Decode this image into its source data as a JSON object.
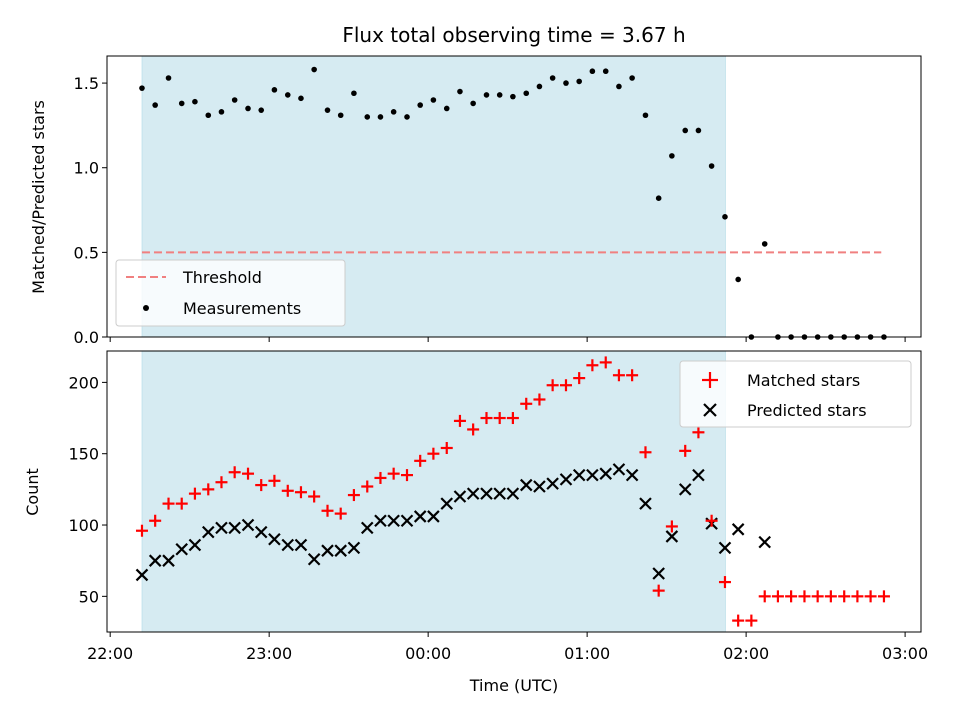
{
  "title": "Flux total observing time = 3.67 h",
  "xlabel": "Time (UTC)",
  "x_ticks": [
    "22:00",
    "23:00",
    "00:00",
    "01:00",
    "02:00",
    "03:00"
  ],
  "colors": {
    "shade": "#add8e6",
    "threshold": "#f08080",
    "matched": "#ff0000",
    "predicted": "#000000"
  },
  "chart_data": [
    {
      "type": "scatter",
      "ylabel": "Matched/Predicted stars",
      "x_unit": "hours since 22:00 UTC",
      "xlim": [
        -0.02,
        5.1
      ],
      "ylim": [
        0,
        1.66
      ],
      "y_ticks": [
        "0.0",
        "0.5",
        "1.0",
        "1.5"
      ],
      "y_tick_values": [
        0,
        0.5,
        1.0,
        1.5
      ],
      "shaded_interval": [
        0.2,
        3.87
      ],
      "legend": {
        "placement": "lower-left",
        "entries": [
          "Threshold",
          "Measurements"
        ]
      },
      "threshold": {
        "name": "Threshold",
        "y": 0.5,
        "x_range": [
          0.2,
          4.85
        ]
      },
      "series": [
        {
          "name": "Measurements",
          "x": [
            0.2,
            0.283,
            0.367,
            0.45,
            0.533,
            0.617,
            0.7,
            0.783,
            0.867,
            0.95,
            1.033,
            1.117,
            1.2,
            1.283,
            1.367,
            1.45,
            1.533,
            1.617,
            1.7,
            1.783,
            1.867,
            1.95,
            2.033,
            2.117,
            2.2,
            2.283,
            2.367,
            2.45,
            2.533,
            2.617,
            2.7,
            2.783,
            2.867,
            2.95,
            3.033,
            3.117,
            3.2,
            3.283,
            3.367,
            3.45,
            3.533,
            3.617,
            3.7,
            3.783,
            3.867,
            3.95,
            4.033,
            4.117,
            4.2,
            4.283,
            4.367,
            4.45,
            4.533,
            4.617,
            4.7,
            4.783,
            4.867
          ],
          "y": [
            1.47,
            1.37,
            1.53,
            1.38,
            1.39,
            1.31,
            1.33,
            1.4,
            1.35,
            1.34,
            1.46,
            1.43,
            1.41,
            1.58,
            1.34,
            1.31,
            1.44,
            1.3,
            1.3,
            1.33,
            1.3,
            1.37,
            1.4,
            1.35,
            1.45,
            1.38,
            1.43,
            1.43,
            1.42,
            1.44,
            1.48,
            1.53,
            1.5,
            1.51,
            1.57,
            1.57,
            1.48,
            1.53,
            1.31,
            0.82,
            1.07,
            1.22,
            1.22,
            1.01,
            0.71,
            0.34,
            0.0,
            0.55,
            0.0,
            0.0,
            0.0,
            0.0,
            0.0,
            0.0,
            0.0,
            0.0,
            0.0
          ]
        }
      ]
    },
    {
      "type": "scatter",
      "ylabel": "Count",
      "x_unit": "hours since 22:00 UTC",
      "xlim": [
        -0.02,
        5.1
      ],
      "ylim": [
        25,
        222
      ],
      "y_ticks": [
        "50",
        "100",
        "150",
        "200"
      ],
      "y_tick_values": [
        50,
        100,
        150,
        200
      ],
      "shaded_interval": [
        0.2,
        3.87
      ],
      "legend": {
        "placement": "upper-right",
        "entries": [
          "Matched stars",
          "Predicted stars"
        ]
      },
      "series": [
        {
          "name": "Matched stars",
          "marker": "+",
          "x": [
            0.2,
            0.283,
            0.367,
            0.45,
            0.533,
            0.617,
            0.7,
            0.783,
            0.867,
            0.95,
            1.033,
            1.117,
            1.2,
            1.283,
            1.367,
            1.45,
            1.533,
            1.617,
            1.7,
            1.783,
            1.867,
            1.95,
            2.033,
            2.117,
            2.2,
            2.283,
            2.367,
            2.45,
            2.533,
            2.617,
            2.7,
            2.783,
            2.867,
            2.95,
            3.033,
            3.117,
            3.2,
            3.283,
            3.367,
            3.45,
            3.533,
            3.617,
            3.7,
            3.783,
            3.867,
            3.95,
            4.033,
            4.117,
            4.2,
            4.283,
            4.367,
            4.45,
            4.533,
            4.617,
            4.7,
            4.783,
            4.867
          ],
          "y": [
            96,
            103,
            115,
            115,
            122,
            125,
            130,
            137,
            136,
            128,
            131,
            124,
            123,
            120,
            110,
            108,
            121,
            127,
            133,
            136,
            135,
            145,
            150,
            154,
            173,
            167,
            175,
            175,
            175,
            185,
            188,
            198,
            198,
            203,
            212,
            214,
            205,
            205,
            151,
            54,
            99,
            152,
            165,
            103,
            60,
            33,
            33,
            50,
            50,
            50,
            50,
            50,
            50,
            50,
            50,
            50,
            50
          ]
        },
        {
          "name": "Predicted stars",
          "marker": "x",
          "x": [
            0.2,
            0.283,
            0.367,
            0.45,
            0.533,
            0.617,
            0.7,
            0.783,
            0.867,
            0.95,
            1.033,
            1.117,
            1.2,
            1.283,
            1.367,
            1.45,
            1.533,
            1.617,
            1.7,
            1.783,
            1.867,
            1.95,
            2.033,
            2.117,
            2.2,
            2.283,
            2.367,
            2.45,
            2.533,
            2.617,
            2.7,
            2.783,
            2.867,
            2.95,
            3.033,
            3.117,
            3.2,
            3.283,
            3.367,
            3.45,
            3.533,
            3.617,
            3.7,
            3.783,
            3.867,
            3.95,
            4.117
          ],
          "y": [
            65,
            75,
            75,
            83,
            86,
            95,
            98,
            98,
            100,
            95,
            90,
            86,
            86,
            76,
            82,
            82,
            84,
            98,
            103,
            103,
            103,
            106,
            106,
            115,
            120,
            122,
            122,
            122,
            122,
            128,
            127,
            129,
            132,
            135,
            135,
            136,
            139,
            135,
            115,
            66,
            92,
            125,
            135,
            101,
            84,
            97,
            88
          ]
        }
      ]
    }
  ]
}
